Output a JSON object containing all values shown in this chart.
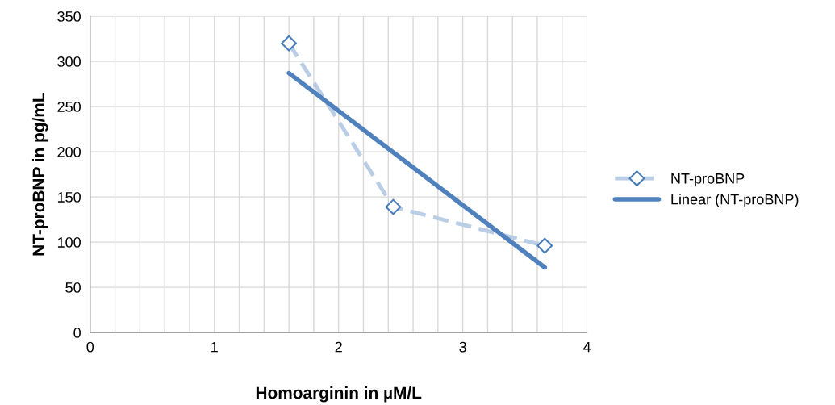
{
  "chart_data": {
    "type": "line",
    "xlabel": "Homoarginin in µM/L",
    "ylabel": "NT-proBNP in pg/mL",
    "series": [
      {
        "name": "NT-proBNP",
        "color": "#b9cde5",
        "marker": "diamond",
        "line_style": "dashed",
        "x": [
          1.6,
          2.44,
          3.66
        ],
        "values": [
          320,
          139,
          96
        ]
      },
      {
        "name": "Linear (NT-proBNP)",
        "color": "#4f81bd",
        "marker": "none",
        "line_style": "solid",
        "x": [
          1.6,
          3.66
        ],
        "values": [
          287,
          72
        ]
      }
    ],
    "xlim": [
      0,
      4
    ],
    "ylim": [
      0,
      350
    ],
    "xticks": [
      0,
      {
        "value": 0.2,
        "label": null
      },
      {
        "value": 0.4,
        "label": null
      },
      {
        "value": 0.6,
        "label": null
      },
      {
        "value": 0.8,
        "label": null
      },
      1,
      {
        "value": 1.2,
        "label": null
      },
      {
        "value": 1.4,
        "label": null
      },
      {
        "value": 1.6,
        "label": null
      },
      {
        "value": 1.8,
        "label": null
      },
      2,
      {
        "value": 2.2,
        "label": null
      },
      {
        "value": 2.4,
        "label": null
      },
      {
        "value": 2.6,
        "label": null
      },
      {
        "value": 2.8,
        "label": null
      },
      3,
      {
        "value": 3.2,
        "label": null
      },
      {
        "value": 3.4,
        "label": null
      },
      {
        "value": 3.6,
        "label": null
      },
      {
        "value": 3.8,
        "label": null
      },
      4
    ],
    "yticks": [
      0,
      50,
      100,
      150,
      200,
      250,
      300,
      350
    ],
    "grid": true,
    "legend": "right"
  }
}
